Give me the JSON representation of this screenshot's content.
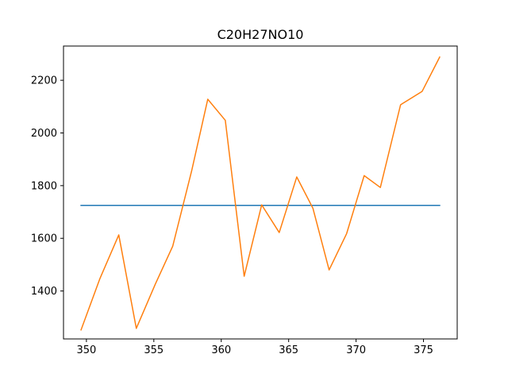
{
  "chart_data": {
    "type": "line",
    "title": "C20H27NO10",
    "xlabel": "",
    "ylabel": "",
    "xlim": [
      348.3,
      377.5
    ],
    "ylim": [
      1218,
      2330
    ],
    "x_ticks": [
      350,
      355,
      360,
      365,
      370,
      375
    ],
    "y_ticks": [
      1400,
      1600,
      1800,
      2000,
      2200
    ],
    "grid": false,
    "series": [
      {
        "color": "#1f77b4",
        "x": [
          349.6,
          376.2
        ],
        "y": [
          1725,
          1725
        ]
      },
      {
        "color": "#ff7f0e",
        "x": [
          349.6,
          351.0,
          352.4,
          353.7,
          355.1,
          356.4,
          357.8,
          359.0,
          360.3,
          361.7,
          363.0,
          364.3,
          365.6,
          366.8,
          368.0,
          369.3,
          370.6,
          371.8,
          373.3,
          374.9,
          376.2
        ],
        "y": [
          1252,
          1447,
          1613,
          1258,
          1425,
          1570,
          1855,
          2128,
          2048,
          1456,
          1727,
          1622,
          1833,
          1714,
          1480,
          1618,
          1838,
          1793,
          2107,
          2158,
          2288
        ]
      }
    ]
  }
}
